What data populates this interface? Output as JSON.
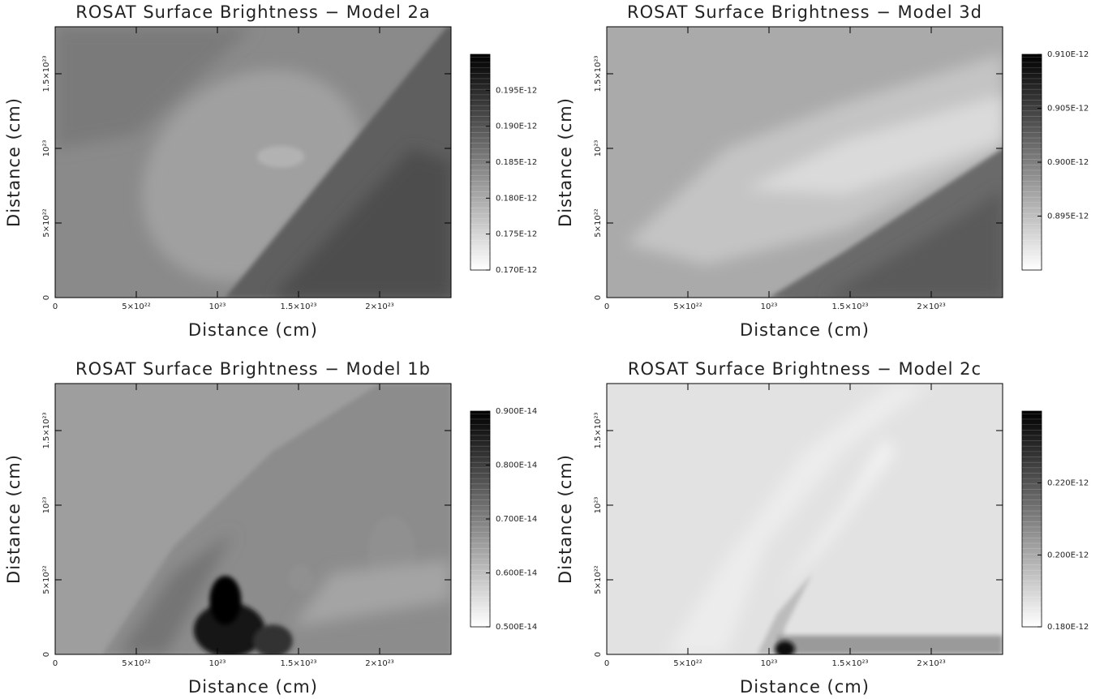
{
  "chart_data": [
    {
      "type": "contour",
      "title": "ROSAT Surface Brightness − Model 2a",
      "x_label": "Distance (cm)",
      "y_label": "Distance (cm)",
      "xlim": [
        0,
        2.44e+23
      ],
      "ylim": [
        0,
        1.815e+23
      ],
      "xticks": [
        0,
        {
          "value": 5e+22,
          "label": "5×10²²"
        },
        {
          "value": 1e+23,
          "label": "10²³"
        },
        {
          "value": 1.5e+23,
          "label": "1.5×10²³"
        },
        {
          "value": 2e+23,
          "label": "2×10²³"
        }
      ],
      "yticks": [
        0,
        {
          "value": 5e+22,
          "label": "5×10²²"
        },
        {
          "value": 1e+23,
          "label": "10²³"
        },
        {
          "value": 1.5e+23,
          "label": "1.5×10²³"
        }
      ],
      "colorbar": {
        "lim": [
          1.7e-13,
          2e-13
        ],
        "ticks": [
          {
            "value": 1.95e-13,
            "label": "0.195E-12"
          },
          {
            "value": 1.9e-13,
            "label": "0.190E-12"
          },
          {
            "value": 1.85e-13,
            "label": "0.185E-12"
          },
          {
            "value": 1.8e-13,
            "label": "0.180E-12"
          },
          {
            "value": 1.75e-13,
            "label": "0.175E-12"
          },
          {
            "value": 1.7e-13,
            "label": "0.170E-12"
          }
        ]
      }
    },
    {
      "type": "contour",
      "title": "ROSAT Surface Brightness − Model 3d",
      "x_label": "Distance (cm)",
      "y_label": "Distance (cm)",
      "xlim": [
        0,
        2.44e+23
      ],
      "ylim": [
        0,
        1.815e+23
      ],
      "xticks": [
        0,
        {
          "value": 5e+22,
          "label": "5×10²²"
        },
        {
          "value": 1e+23,
          "label": "10²³"
        },
        {
          "value": 1.5e+23,
          "label": "1.5×10²³"
        },
        {
          "value": 2e+23,
          "label": "2×10²³"
        }
      ],
      "yticks": [
        0,
        {
          "value": 5e+22,
          "label": "5×10²²"
        },
        {
          "value": 1e+23,
          "label": "10²³"
        },
        {
          "value": 1.5e+23,
          "label": "1.5×10²³"
        }
      ],
      "colorbar": {
        "lim": [
          8.9e-13,
          9.1e-13
        ],
        "ticks": [
          {
            "value": 9.1e-13,
            "label": "0.910E-12"
          },
          {
            "value": 9.05e-13,
            "label": "0.905E-12"
          },
          {
            "value": 9e-13,
            "label": "0.900E-12"
          },
          {
            "value": 8.95e-13,
            "label": "0.895E-12"
          }
        ]
      }
    },
    {
      "type": "contour",
      "title": "ROSAT Surface Brightness − Model 1b",
      "x_label": "Distance (cm)",
      "y_label": "Distance (cm)",
      "xlim": [
        0,
        2.44e+23
      ],
      "ylim": [
        0,
        1.815e+23
      ],
      "xticks": [
        0,
        {
          "value": 5e+22,
          "label": "5×10²²"
        },
        {
          "value": 1e+23,
          "label": "10²³"
        },
        {
          "value": 1.5e+23,
          "label": "1.5×10²³"
        },
        {
          "value": 2e+23,
          "label": "2×10²³"
        }
      ],
      "yticks": [
        0,
        {
          "value": 5e+22,
          "label": "5×10²²"
        },
        {
          "value": 1e+23,
          "label": "10²³"
        },
        {
          "value": 1.5e+23,
          "label": "1.5×10²³"
        }
      ],
      "colorbar": {
        "lim": [
          5e-15,
          9e-15
        ],
        "ticks": [
          {
            "value": 9e-15,
            "label": "0.900E-14"
          },
          {
            "value": 8e-15,
            "label": "0.800E-14"
          },
          {
            "value": 7e-15,
            "label": "0.700E-14"
          },
          {
            "value": 6e-15,
            "label": "0.600E-14"
          },
          {
            "value": 5e-15,
            "label": "0.500E-14"
          }
        ]
      }
    },
    {
      "type": "contour",
      "title": "ROSAT Surface Brightness − Model 2c",
      "x_label": "Distance (cm)",
      "y_label": "Distance (cm)",
      "xlim": [
        0,
        2.44e+23
      ],
      "ylim": [
        0,
        1.815e+23
      ],
      "xticks": [
        0,
        {
          "value": 5e+22,
          "label": "5×10²²"
        },
        {
          "value": 1e+23,
          "label": "10²³"
        },
        {
          "value": 1.5e+23,
          "label": "1.5×10²³"
        },
        {
          "value": 2e+23,
          "label": "2×10²³"
        }
      ],
      "yticks": [
        0,
        {
          "value": 5e+22,
          "label": "5×10²²"
        },
        {
          "value": 1e+23,
          "label": "10²³"
        },
        {
          "value": 1.5e+23,
          "label": "1.5×10²³"
        }
      ],
      "colorbar": {
        "lim": [
          1.8e-13,
          2.4e-13
        ],
        "ticks": [
          {
            "value": 2.2e-13,
            "label": "0.220E-12"
          },
          {
            "value": 2e-13,
            "label": "0.200E-12"
          },
          {
            "value": 1.8e-13,
            "label": "0.180E-12"
          }
        ]
      }
    }
  ]
}
